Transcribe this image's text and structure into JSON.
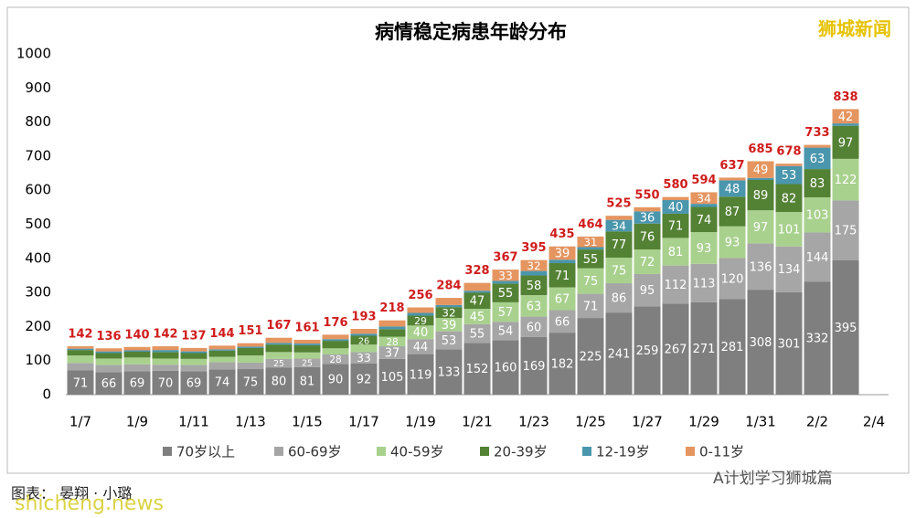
{
  "chart_data": {
    "type": "stacked-bar",
    "title": "病情稳定病患年龄分布",
    "categories": [
      "1/7",
      null,
      "1/9",
      null,
      "1/11",
      null,
      "1/13",
      null,
      "1/15",
      null,
      "1/17",
      null,
      "1/19",
      null,
      "1/21",
      null,
      "1/23",
      null,
      "1/25",
      null,
      "1/27",
      null,
      "1/29",
      null,
      "1/31",
      null,
      "2/2",
      null,
      "2/4"
    ],
    "series": [
      {
        "name": "70岁以上",
        "color": "#7f7f7f",
        "values": [
          71,
          66,
          69,
          70,
          69,
          74,
          75,
          80,
          81,
          90,
          92,
          105,
          119,
          133,
          152,
          160,
          169,
          182,
          225,
          241,
          259,
          267,
          271,
          281,
          308,
          301,
          332,
          395,
          null
        ]
      },
      {
        "name": "60-69岁",
        "color": "#a6a6a6",
        "values": [
          22,
          21,
          20,
          18,
          18,
          21,
          19,
          25,
          25,
          28,
          33,
          37,
          44,
          53,
          55,
          54,
          60,
          66,
          71,
          86,
          95,
          112,
          113,
          120,
          136,
          134,
          144,
          175,
          null
        ]
      },
      {
        "name": "40-59岁",
        "color": "#a9d18e",
        "values": [
          22,
          19,
          20,
          18,
          18,
          16,
          21,
          20,
          18,
          18,
          22,
          28,
          40,
          39,
          45,
          57,
          63,
          67,
          75,
          75,
          72,
          81,
          93,
          93,
          97,
          101,
          103,
          122,
          null
        ]
      },
      {
        "name": "20-39岁",
        "color": "#548235",
        "values": [
          16,
          16,
          17,
          19,
          17,
          18,
          22,
          22,
          21,
          22,
          26,
          22,
          29,
          32,
          47,
          55,
          58,
          71,
          55,
          77,
          76,
          71,
          74,
          87,
          89,
          82,
          83,
          97,
          null
        ]
      },
      {
        "name": "12-19岁",
        "color": "#4a96ad",
        "values": [
          4,
          5,
          4,
          6,
          5,
          4,
          4,
          5,
          5,
          5,
          6,
          8,
          8,
          6,
          6,
          8,
          13,
          10,
          7,
          34,
          36,
          40,
          9,
          48,
          6,
          53,
          63,
          7,
          null
        ]
      },
      {
        "name": "0-11岁",
        "color": "#e59560",
        "values": [
          7,
          9,
          10,
          11,
          10,
          11,
          10,
          15,
          11,
          13,
          14,
          18,
          16,
          21,
          23,
          33,
          32,
          39,
          31,
          12,
          12,
          9,
          34,
          8,
          49,
          7,
          8,
          42,
          null
        ]
      }
    ],
    "totals": [
      142,
      136,
      140,
      142,
      137,
      144,
      151,
      167,
      161,
      176,
      193,
      218,
      256,
      284,
      328,
      367,
      395,
      435,
      464,
      525,
      550,
      580,
      594,
      637,
      685,
      678,
      733,
      838,
      null
    ],
    "ylim": [
      0,
      1000
    ],
    "yticks": [
      0,
      100,
      200,
      300,
      400,
      500,
      600,
      700,
      800,
      900,
      1000
    ],
    "grid": false,
    "legend": "bottom",
    "annotations": [
      "狮城新闻",
      "图表： 晏翔 · 小璐",
      "shicheng.news",
      "A计划学习狮城篇"
    ]
  }
}
